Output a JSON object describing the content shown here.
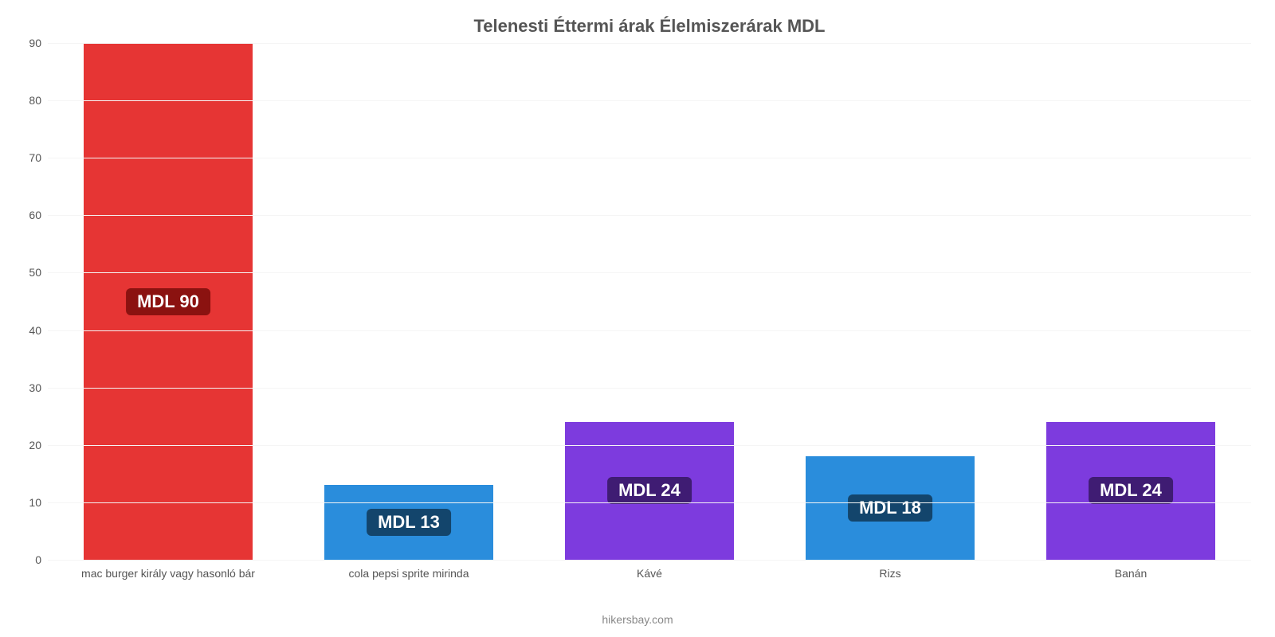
{
  "chart": {
    "type": "bar",
    "title": "Telenesti Éttermi árak Élelmiszerárak MDL",
    "title_fontsize": 22,
    "title_color": "#555555",
    "footer": "hikersbay.com",
    "footer_color": "#888888",
    "background_color": "#ffffff",
    "grid_color": "#f5f5f5",
    "axis_color": "#808080",
    "tick_color": "#555555",
    "tick_fontsize": 14,
    "cat_fontsize": 14,
    "ylim": [
      0,
      90
    ],
    "ytick_step": 10,
    "bar_width": 0.7,
    "label_fontsize": 22,
    "label_text_color": "#ffffff",
    "label_badge_radius": 6,
    "categories": [
      "mac burger király vagy hasonló bár",
      "cola pepsi sprite mirinda",
      "Kávé",
      "Rizs",
      "Banán"
    ],
    "values": [
      90,
      13,
      24,
      18,
      24
    ],
    "value_labels": [
      "MDL 90",
      "MDL 13",
      "MDL 24",
      "MDL 18",
      "MDL 24"
    ],
    "bar_colors": [
      "#e63534",
      "#2a8ddc",
      "#7d3bde",
      "#2a8ddc",
      "#7d3bde"
    ],
    "badge_colors": [
      "#8b1210",
      "#13456c",
      "#3f1c73",
      "#13456c",
      "#3f1c73"
    ]
  }
}
